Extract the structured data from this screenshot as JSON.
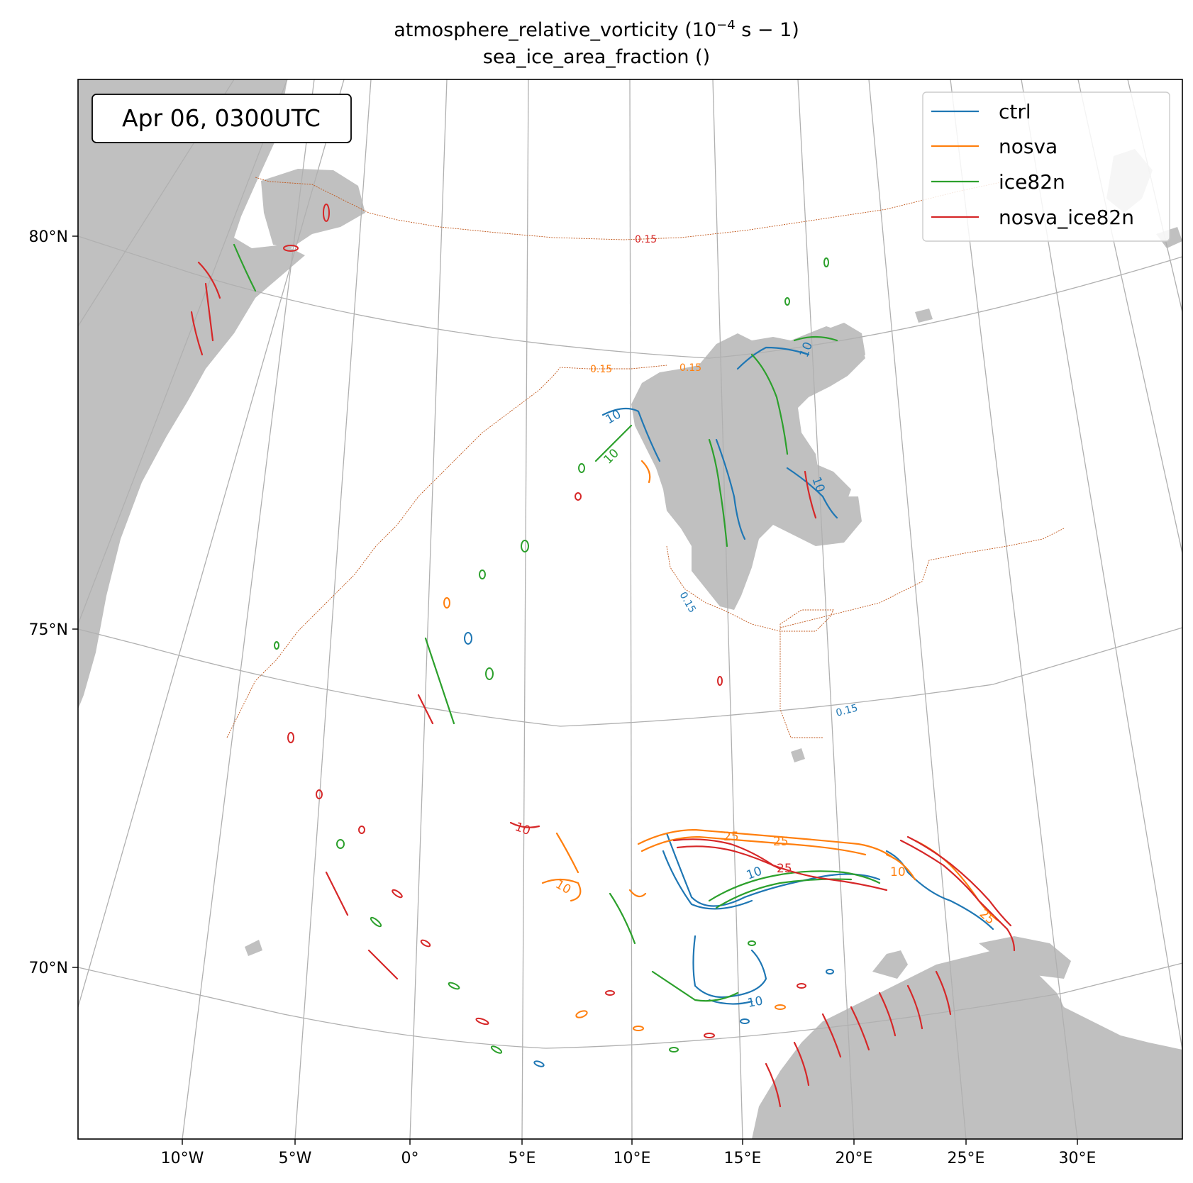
{
  "title": {
    "line1_pre": "atmosphere_relative_vorticity (10",
    "line1_sup": "−4",
    "line1_post": " s − 1)",
    "line2": "sea_ice_area_fraction ()"
  },
  "timestamp": "Apr 06, 0300UTC",
  "legend": [
    {
      "label": "ctrl",
      "color": "#1f77b4"
    },
    {
      "label": "nosva",
      "color": "#ff7f0e"
    },
    {
      "label": "ice82n",
      "color": "#2ca02c"
    },
    {
      "label": "nosva_ice82n",
      "color": "#d62728"
    }
  ],
  "lat_labels": [
    "80°N",
    "75°N",
    "70°N"
  ],
  "lon_labels": [
    "10°W",
    "5°W",
    "0°",
    "5°E",
    "10°E",
    "15°E",
    "20°E",
    "25°E",
    "30°E"
  ],
  "contour_labels": {
    "ice": [
      "0.15",
      "0.15",
      "0.15",
      "0.15",
      "0.15"
    ],
    "vort": [
      "10",
      "10",
      "10",
      "10",
      "10",
      "10",
      "25",
      "25",
      "25",
      "10",
      "10",
      "10",
      "25"
    ]
  },
  "colors": {
    "land": "#c0c0c0",
    "grid": "#b0b0b0",
    "ice_edge": "#c0561a"
  }
}
